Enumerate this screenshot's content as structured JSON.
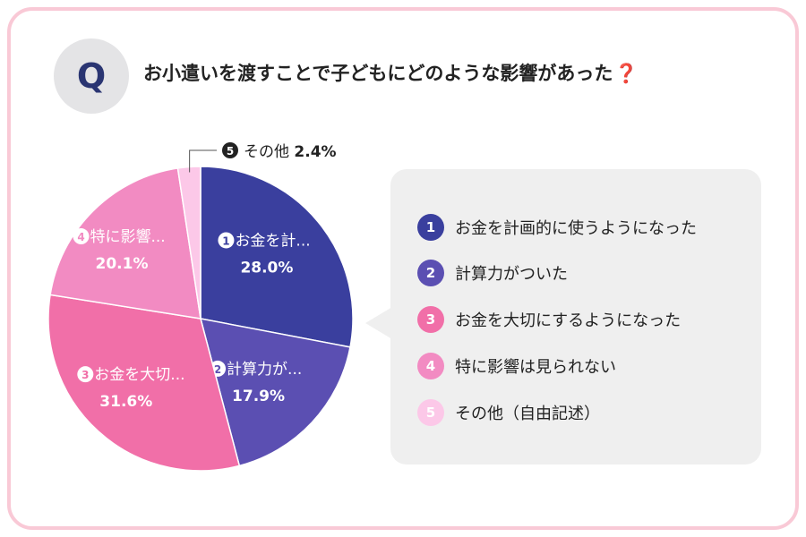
{
  "question": {
    "badge": "Q",
    "text": "お小遣いを渡すことで子どもにどのような影響があった",
    "mark": "❓"
  },
  "legend": {
    "items": [
      {
        "num": "1",
        "label": "お金を計画的に使うようになった",
        "color": "#3a3f9e"
      },
      {
        "num": "2",
        "label": "計算力がついた",
        "color": "#5b4fb2"
      },
      {
        "num": "3",
        "label": "お金を大切にするようになった",
        "color": "#f16fa8"
      },
      {
        "num": "4",
        "label": "特に影響は見られない",
        "color": "#f28bc2"
      },
      {
        "num": "5",
        "label": "その他（自由記述）",
        "color": "#fcc8e8"
      }
    ]
  },
  "chart_data": {
    "type": "pie",
    "slices": [
      {
        "num": "1",
        "label": "お金を計...",
        "value": 28.0,
        "value_label": "28.0%",
        "color": "#3a3f9e"
      },
      {
        "num": "2",
        "label": "計算力が...",
        "value": 17.9,
        "value_label": "17.9%",
        "color": "#5b4fb2"
      },
      {
        "num": "3",
        "label": "お金を大切...",
        "value": 31.6,
        "value_label": "31.6%",
        "color": "#f16fa8"
      },
      {
        "num": "4",
        "label": "特に影響...",
        "value": 20.1,
        "value_label": "20.1%",
        "color": "#f28bc2"
      },
      {
        "num": "5",
        "label": "その他",
        "value": 2.4,
        "value_label": "2.4%",
        "color": "#fcc8e8"
      }
    ],
    "start_angle_deg": 0,
    "direction": "clockwise",
    "outside_label_slice": "5"
  }
}
